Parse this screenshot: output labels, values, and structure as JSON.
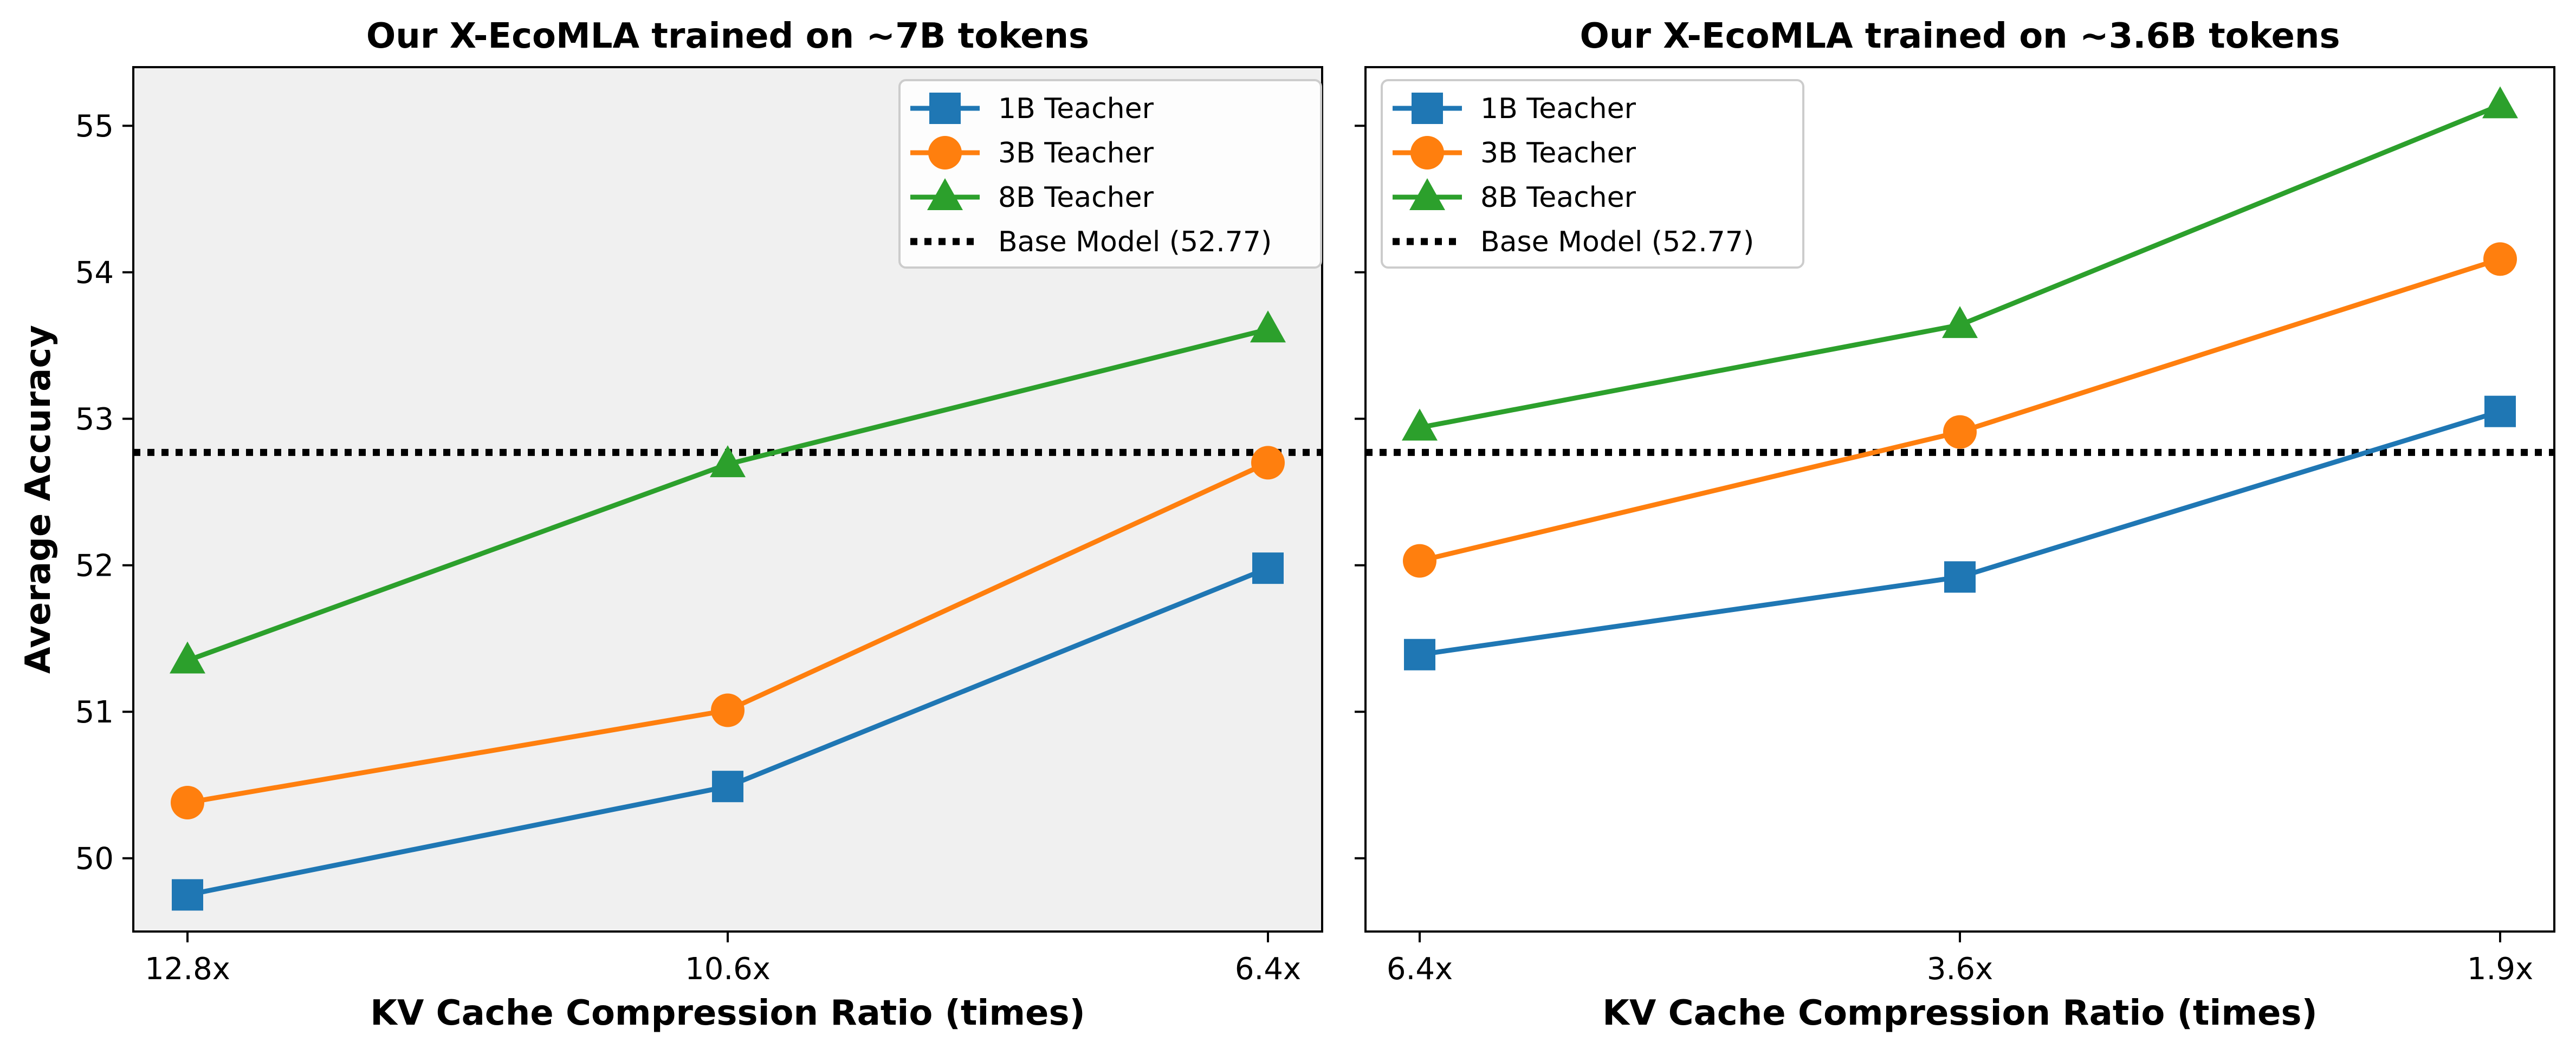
{
  "chart_data": [
    {
      "type": "line",
      "title": "Our X-EcoMLA trained on ~7B tokens",
      "xlabel": "KV Cache Compression Ratio (times)",
      "ylabel": "Average Accuracy",
      "categories": [
        "12.8x",
        "10.6x",
        "6.4x"
      ],
      "ylim": [
        49.5,
        55.4
      ],
      "yticks": [
        "50",
        "51",
        "52",
        "53",
        "54",
        "55"
      ],
      "background": "#f0f0f0",
      "grid": false,
      "legend_position": "top-right",
      "series": [
        {
          "name": "1B Teacher",
          "values": [
            49.75,
            50.49,
            51.98
          ],
          "color": "#1f77b4",
          "marker": "square"
        },
        {
          "name": "3B Teacher",
          "values": [
            50.38,
            51.01,
            52.7
          ],
          "color": "#ff7f0e",
          "marker": "circle"
        },
        {
          "name": "8B Teacher",
          "values": [
            51.35,
            52.69,
            53.61
          ],
          "color": "#2ca02c",
          "marker": "triangle"
        }
      ],
      "baseline": {
        "name": "Base Model (52.77)",
        "value": 52.77,
        "color": "#000000",
        "style": "dotted"
      }
    },
    {
      "type": "line",
      "title": "Our X-EcoMLA trained on ~3.6B tokens",
      "xlabel": "KV Cache Compression Ratio (times)",
      "ylabel": "",
      "categories": [
        "6.4x",
        "3.6x",
        "1.9x"
      ],
      "ylim": [
        49.5,
        55.4
      ],
      "yticks": [
        "",
        "",
        "",
        "",
        "",
        ""
      ],
      "background": "#ffffff",
      "grid": false,
      "legend_position": "top-left",
      "series": [
        {
          "name": "1B Teacher",
          "values": [
            51.39,
            51.92,
            53.05
          ],
          "color": "#1f77b4",
          "marker": "square"
        },
        {
          "name": "3B Teacher",
          "values": [
            52.03,
            52.91,
            54.09
          ],
          "color": "#ff7f0e",
          "marker": "circle"
        },
        {
          "name": "8B Teacher",
          "values": [
            52.94,
            53.64,
            55.14
          ],
          "color": "#2ca02c",
          "marker": "triangle"
        }
      ],
      "baseline": {
        "name": "Base Model (52.77)",
        "value": 52.77,
        "color": "#000000",
        "style": "dotted"
      }
    }
  ]
}
